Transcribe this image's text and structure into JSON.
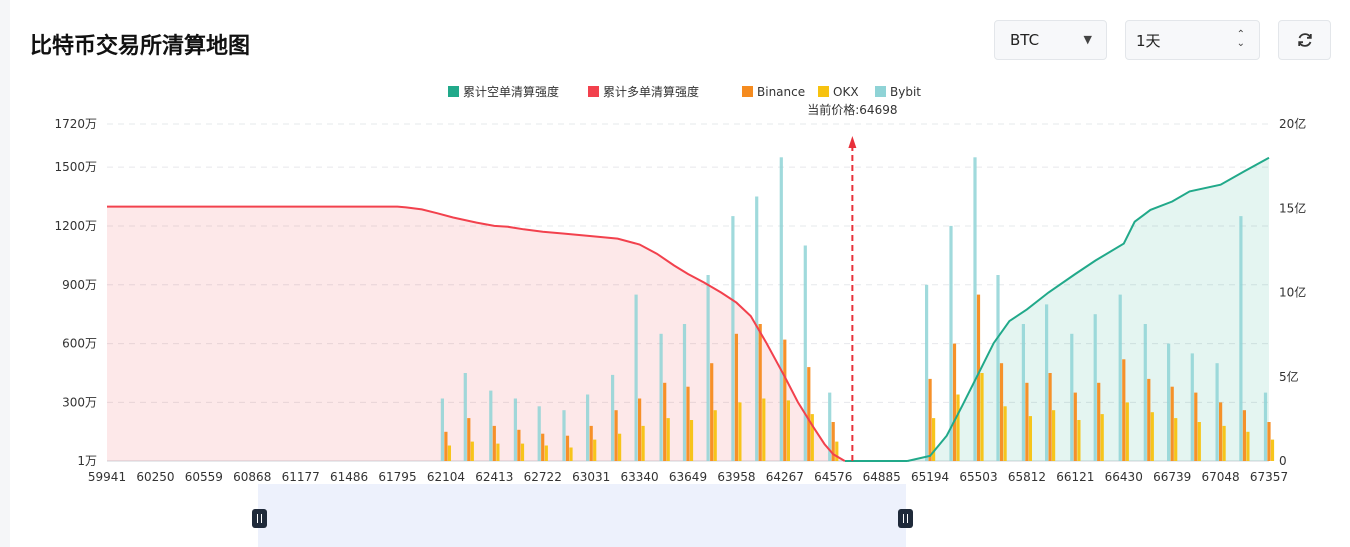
{
  "header": {
    "title": "比特币交易所清算地图",
    "coin_select": "BTC",
    "range_select": "1天"
  },
  "colors": {
    "short_cum": "#21a98a",
    "long_cum": "#f2414d",
    "binance": "#f58b1f",
    "okx": "#f7c20f",
    "bybit": "#8fd3d6"
  },
  "chart_data": {
    "type": "bar",
    "legend": [
      {
        "key": "short_cum",
        "label": "累计空单清算强度"
      },
      {
        "key": "long_cum",
        "label": "累计多单清算强度"
      },
      {
        "key": "binance",
        "label": "Binance"
      },
      {
        "key": "okx",
        "label": "OKX"
      },
      {
        "key": "bybit",
        "label": "Bybit"
      }
    ],
    "current_price_label": "当前价格:64698",
    "current_price": 64698,
    "xlim": [
      59941,
      67357
    ],
    "x_ticks": [
      "59941",
      "60250",
      "60559",
      "60868",
      "61177",
      "61486",
      "61795",
      "62104",
      "62413",
      "62722",
      "63031",
      "63340",
      "63649",
      "63958",
      "64267",
      "64576",
      "64885",
      "65194",
      "65503",
      "65812",
      "66121",
      "66430",
      "66739",
      "67048",
      "67357"
    ],
    "left_axis": {
      "ticks": [
        {
          "value": 10000,
          "label": "1万"
        },
        {
          "value": 3000000,
          "label": "300万"
        },
        {
          "value": 6000000,
          "label": "600万"
        },
        {
          "value": 9000000,
          "label": "900万"
        },
        {
          "value": 12000000,
          "label": "1200万"
        },
        {
          "value": 15000000,
          "label": "1500万"
        },
        {
          "value": 17200000,
          "label": "1720万"
        }
      ]
    },
    "right_axis": {
      "ticks": [
        {
          "value": 0,
          "label": "0"
        },
        {
          "value": 500000000,
          "label": "5亿"
        },
        {
          "value": 1000000000,
          "label": "10亿"
        },
        {
          "value": 1500000000,
          "label": "15亿"
        },
        {
          "value": 2000000000,
          "label": "20亿"
        }
      ]
    },
    "long_cumulative": {
      "x": [
        59941,
        61795,
        61850,
        61950,
        62050,
        62150,
        62300,
        62413,
        62500,
        62600,
        62722,
        62850,
        63031,
        63200,
        63340,
        63450,
        63560,
        63649,
        63750,
        63860,
        63958,
        64050,
        64150,
        64267,
        64350,
        64450,
        64520,
        64576,
        64650
      ],
      "y": [
        1510000000,
        1510000000,
        1505000000,
        1493000000,
        1470000000,
        1445000000,
        1415000000,
        1395000000,
        1390000000,
        1375000000,
        1360000000,
        1350000000,
        1335000000,
        1320000000,
        1285000000,
        1230000000,
        1160000000,
        1110000000,
        1060000000,
        1000000000,
        940000000,
        860000000,
        700000000,
        500000000,
        350000000,
        200000000,
        100000000,
        40000000,
        0
      ]
    },
    "short_cumulative": {
      "x": [
        65050,
        65194,
        65300,
        65400,
        65503,
        65600,
        65700,
        65812,
        65950,
        66121,
        66250,
        66430,
        66500,
        66600,
        66739,
        66850,
        67048,
        67200,
        67357
      ],
      "y": [
        0,
        30000000,
        150000000,
        330000000,
        520000000,
        700000000,
        830000000,
        900000000,
        1000000000,
        1110000000,
        1190000000,
        1290000000,
        1420000000,
        1490000000,
        1540000000,
        1600000000,
        1640000000,
        1720000000,
        1800000000
      ]
    },
    "bars": {
      "x": [
        62104,
        62250,
        62413,
        62570,
        62722,
        62880,
        63031,
        63190,
        63340,
        63500,
        63649,
        63800,
        63958,
        64110,
        64267,
        64420,
        64576,
        65194,
        65350,
        65503,
        65650,
        65812,
        65960,
        66121,
        66270,
        66430,
        66590,
        66739,
        66890,
        67048,
        67200,
        67357
      ],
      "binance": [
        1500000,
        2200000,
        1800000,
        1600000,
        1400000,
        1300000,
        1800000,
        2600000,
        3200000,
        4000000,
        3800000,
        5000000,
        6500000,
        7000000,
        6200000,
        4800000,
        2000000,
        4200000,
        6000000,
        8500000,
        5000000,
        4000000,
        4500000,
        3500000,
        4000000,
        5200000,
        4200000,
        3800000,
        3500000,
        3000000,
        2600000,
        2000000
      ],
      "okx": [
        800000,
        1000000,
        900000,
        900000,
        800000,
        700000,
        1100000,
        1400000,
        1800000,
        2200000,
        2100000,
        2600000,
        3000000,
        3200000,
        3100000,
        2400000,
        1000000,
        2200000,
        3400000,
        4500000,
        2800000,
        2300000,
        2600000,
        2100000,
        2400000,
        3000000,
        2500000,
        2200000,
        2000000,
        1800000,
        1500000,
        1100000
      ],
      "bybit": [
        3200000,
        4500000,
        3600000,
        3200000,
        2800000,
        2600000,
        3400000,
        4400000,
        8500000,
        6500000,
        7000000,
        9500000,
        12500000,
        13500000,
        15500000,
        11000000,
        3500000,
        9000000,
        12000000,
        15500000,
        9500000,
        7000000,
        8000000,
        6500000,
        7500000,
        8500000,
        7000000,
        6000000,
        5500000,
        5000000,
        12500000,
        3500000
      ]
    }
  }
}
